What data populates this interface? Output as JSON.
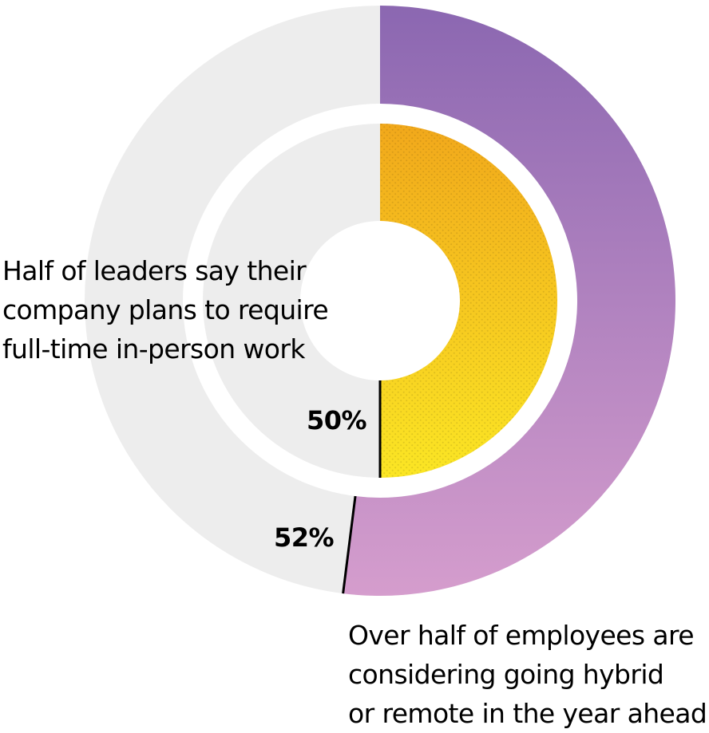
{
  "chart_data": {
    "type": "donut",
    "rings": [
      {
        "ring": "outer",
        "value_percent": 52,
        "label": "52%",
        "caption_lines": [
          "Over half of employees are",
          "considering going hybrid",
          "or remote in the year ahead"
        ],
        "fill_gradient": [
          "#8b67b1",
          "#d59dcd"
        ],
        "remainder_color": "#ededed"
      },
      {
        "ring": "inner",
        "value_percent": 50,
        "label": "50%",
        "caption_lines": [
          "Half of leaders say their",
          "company plans to require",
          "full-time in-person work"
        ],
        "fill_gradient": [
          "#f1a81b",
          "#fbe624"
        ],
        "fill_texture": "dotted",
        "remainder_color": "#ededed"
      }
    ],
    "start_angle": "12 o'clock",
    "direction": "clockwise"
  }
}
